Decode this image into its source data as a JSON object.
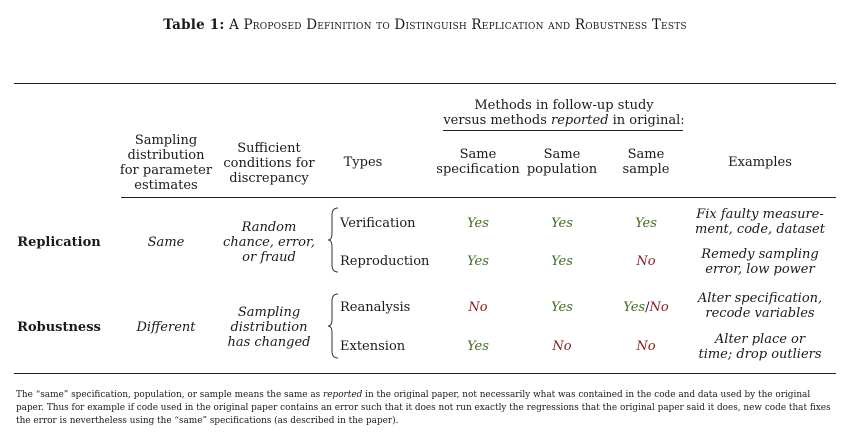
{
  "caption": {
    "number": "Table 1:",
    "title": "A Proposed Definition to Distinguish Replication and Robustness Tests"
  },
  "headers": {
    "sampling": "Sampling\ndistribution\nfor parameter\nestimates",
    "sufficient": "Sufficient\nconditions for\ndiscrepancy",
    "types": "Types",
    "methods_line1": "Methods in follow-up study",
    "methods_line2_pre": "versus methods ",
    "methods_line2_em": "reported",
    "methods_line2_post": " in original:",
    "same_spec": "Same\nspecification",
    "same_pop": "Same\npopulation",
    "same_sample": "Same\nsample",
    "examples": "Examples"
  },
  "groups": [
    {
      "label": "Replication",
      "sampling": "Same",
      "conditions": "Random\nchance, error,\nor fraud",
      "rows": [
        {
          "type": "Verification",
          "spec": "Yes",
          "pop": "Yes",
          "sample_yes": "Yes",
          "sample_no": "",
          "sample_sep": "",
          "example": "Fix faulty measure-\nment, code, dataset"
        },
        {
          "type": "Reproduction",
          "spec": "Yes",
          "pop": "Yes",
          "sample_yes": "",
          "sample_no": "No",
          "sample_sep": "",
          "example": "Remedy sampling\nerror, low power"
        }
      ]
    },
    {
      "label": "Robustness",
      "sampling": "Different",
      "conditions": "Sampling\ndistribution\nhas changed",
      "rows": [
        {
          "type": "Reanalysis",
          "spec": "No",
          "pop": "Yes",
          "sample_yes": "Yes",
          "sample_no": "No",
          "sample_sep": "/",
          "example": "Alter specification,\nrecode variables"
        },
        {
          "type": "Extension",
          "spec": "Yes",
          "pop": "No",
          "sample_yes": "",
          "sample_no": "No",
          "sample_sep": "",
          "example": "Alter place or\ntime; drop outliers"
        }
      ]
    }
  ],
  "note": {
    "p1": "The “same” specification, population, or sample means the same as ",
    "em": "reported",
    "p2": " in the original paper, not necessarily what was contained in the code and data used by the original paper. Thus for example if code used in the original paper contains an error such that it does not run exactly the regressions that the original paper said it does, new code that fixes the error is nevertheless using the “same” specifications (as described in the paper)."
  }
}
